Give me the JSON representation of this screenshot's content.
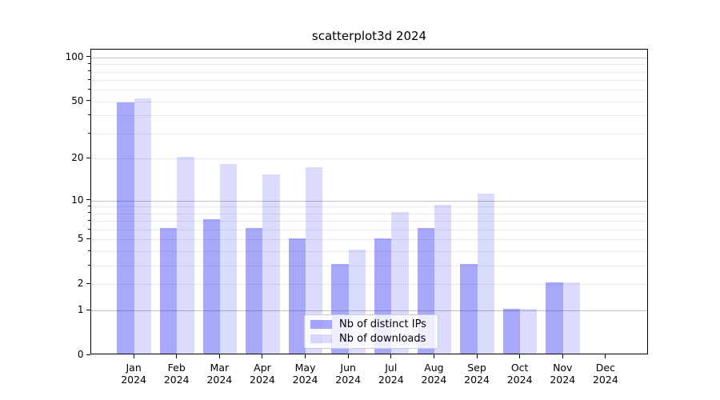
{
  "chart_data": {
    "type": "bar",
    "title": "scatterplot3d 2024",
    "categories": [
      {
        "month": "Jan",
        "year": "2024"
      },
      {
        "month": "Feb",
        "year": "2024"
      },
      {
        "month": "Mar",
        "year": "2024"
      },
      {
        "month": "Apr",
        "year": "2024"
      },
      {
        "month": "May",
        "year": "2024"
      },
      {
        "month": "Jun",
        "year": "2024"
      },
      {
        "month": "Jul",
        "year": "2024"
      },
      {
        "month": "Aug",
        "year": "2024"
      },
      {
        "month": "Sep",
        "year": "2024"
      },
      {
        "month": "Oct",
        "year": "2024"
      },
      {
        "month": "Nov",
        "year": "2024"
      },
      {
        "month": "Dec",
        "year": "2024"
      }
    ],
    "series": [
      {
        "name": "Nb of distinct IPs",
        "color": "rgba(0,0,240,0.34)",
        "values": [
          48,
          6,
          7,
          6,
          5,
          3,
          5,
          6,
          3,
          1,
          2,
          0
        ]
      },
      {
        "name": "Nb of downloads",
        "color": "rgba(0,0,240,0.14)",
        "values": [
          51,
          20,
          18,
          15,
          17,
          4,
          8,
          9,
          11,
          1,
          2,
          0
        ]
      }
    ],
    "scale": "log1p",
    "ylim": [
      0,
      113
    ],
    "y_tick_labels": [
      0,
      1,
      2,
      5,
      10,
      20,
      50,
      100
    ],
    "gridlines": {
      "major": [
        1,
        10,
        100
      ],
      "minor": [
        2,
        3,
        4,
        5,
        6,
        7,
        8,
        9,
        20,
        30,
        40,
        50,
        60,
        70,
        80,
        90
      ]
    },
    "grid": "on",
    "legend_position": "inside lower center",
    "colors": {
      "axis": "#000000",
      "major_grid": "#c3c3c3",
      "minor_grid": "#ebebeb",
      "background": "#ffffff"
    }
  }
}
